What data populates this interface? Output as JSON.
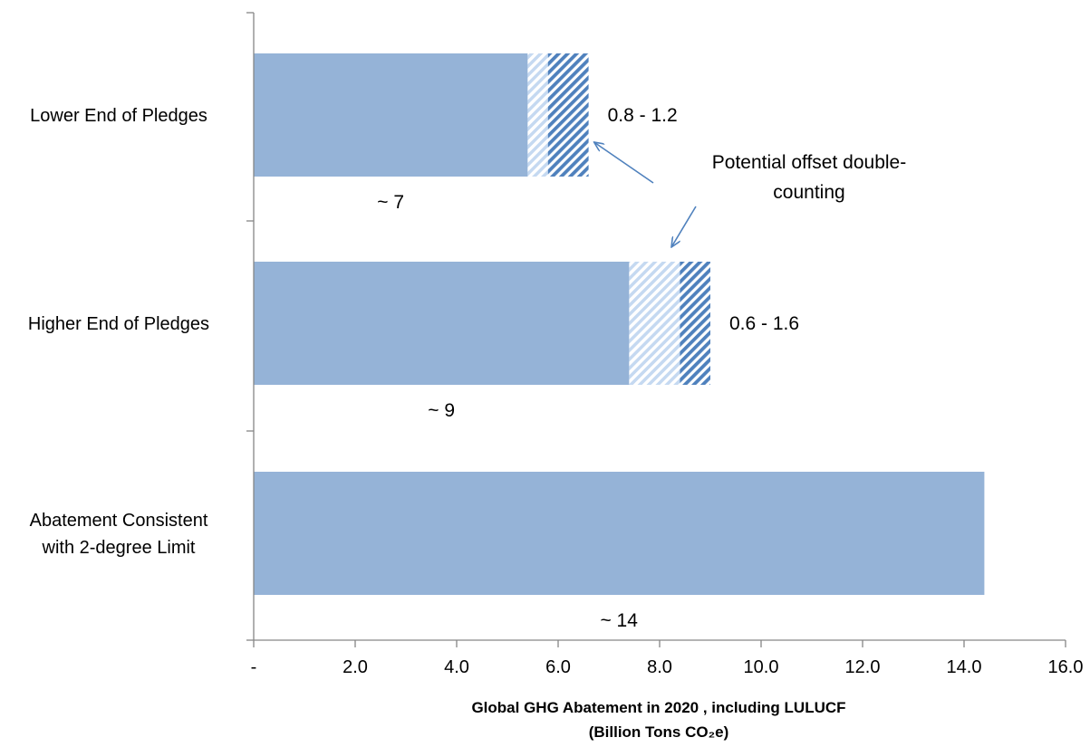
{
  "chart_data": {
    "type": "bar",
    "orientation": "horizontal",
    "stacked": true,
    "categories": [
      "Lower End of Pledges",
      "Higher End of Pledges",
      "Abatement Consistent with 2-degree Limit"
    ],
    "category_lines": [
      [
        "Lower End of Pledges"
      ],
      [
        "Higher End of Pledges"
      ],
      [
        "Abatement Consistent",
        "with 2-degree Limit"
      ]
    ],
    "series": [
      {
        "values": [
          5.4,
          7.4,
          14.4
        ],
        "color": "#95b3d7",
        "pattern": "solid"
      },
      {
        "values": [
          0.4,
          1.0,
          0
        ],
        "color": "#c5d9f1",
        "pattern": "light-diagonal-stripes"
      },
      {
        "values": [
          0.8,
          0.6,
          0
        ],
        "color": "#4f81bd",
        "pattern": "dark-diagonal-stripes"
      }
    ],
    "below_bar_labels": [
      "~ 7",
      "~ 9",
      "~ 14"
    ],
    "right_labels": [
      "0.8 - 1.2",
      "0.6 - 1.6",
      ""
    ],
    "annotation": {
      "lines": [
        "Potential offset double-",
        "counting"
      ],
      "arrow_targets": [
        "Lower End of Pledges",
        "Higher End of Pledges"
      ]
    },
    "xlim": [
      0,
      16
    ],
    "xticks": [
      0,
      2,
      4,
      6,
      8,
      10,
      12,
      14,
      16
    ],
    "xtick_labels": [
      "-",
      "2.0",
      "4.0",
      "6.0",
      "8.0",
      "10.0",
      "12.0",
      "14.0",
      "16.0"
    ],
    "xlabel_lines": [
      "Global GHG Abatement in 2020 , including LULUCF",
      "(Billion Tons CO₂e)"
    ],
    "ylabel": "",
    "grid": false,
    "legend": "none"
  }
}
